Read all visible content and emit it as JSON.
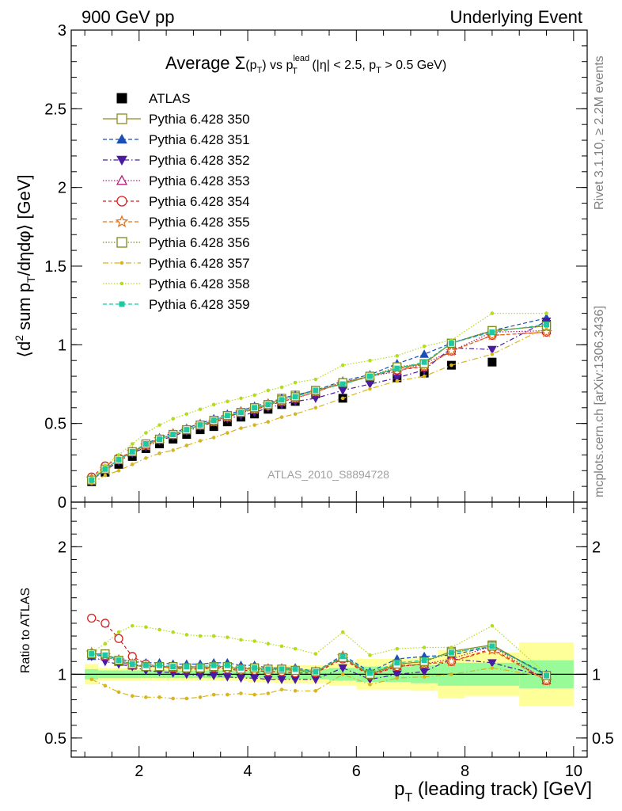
{
  "header": {
    "left": "900 GeV pp",
    "right": "Underlying Event",
    "side_top": "Rivet 3.1.10, ≥ 2.2M events",
    "side_bottom": "mcplots.cern.ch [arXiv:1306.3436]"
  },
  "plot_title": {
    "average": "Average ",
    "sigma": "Σ",
    "pt_open": "(p",
    "t_sub": "T",
    "close_vs": ") vs p",
    "lead_sup": "lead",
    "t_sub2": "T",
    "cut_a": " (|η| < 2.5, p",
    "t_sub3": "T",
    "cut_b": " > 0.5 GeV)"
  },
  "analysis_label": "ATLAS_2010_S8894728",
  "ylabel_main": {
    "a": "⟨d",
    "b": "2",
    "c": " sum p",
    "d": "T",
    "e": "/dηdφ⟩ [GeV]"
  },
  "ylabel_ratio": "Ratio to ATLAS",
  "xlabel": {
    "a": "p",
    "b": "T",
    "c": " (leading track) [GeV]"
  },
  "chart_data": [
    {
      "type": "line",
      "panel": "main",
      "x": [
        1.125,
        1.375,
        1.625,
        1.875,
        2.125,
        2.375,
        2.625,
        2.875,
        3.125,
        3.375,
        3.625,
        3.875,
        4.125,
        4.375,
        4.625,
        4.875,
        5.25,
        5.75,
        6.25,
        6.75,
        7.25,
        7.75,
        8.5,
        9.5
      ],
      "xlim": [
        0.75,
        10.25
      ],
      "ylim": [
        0,
        3
      ],
      "xticks": [
        2,
        4,
        6,
        8,
        10
      ],
      "yticks": [
        0,
        0.5,
        1,
        1.5,
        2,
        2.5,
        3
      ],
      "legend_position": "top-left",
      "series": [
        {
          "name": "ATLAS",
          "color": "#000000",
          "marker": "square-filled",
          "dash": "none",
          "values": [
            0.13,
            0.19,
            0.24,
            0.29,
            0.34,
            0.37,
            0.4,
            0.43,
            0.46,
            0.48,
            0.51,
            0.54,
            0.56,
            0.59,
            0.62,
            0.64,
            0.69,
            0.66,
            0.79,
            0.79,
            0.82,
            0.87,
            0.89,
            1.13
          ]
        },
        {
          "name": "Pythia 6.428 350",
          "color": "#8c8c1e",
          "marker": "square-open",
          "dash": "solid",
          "values": [
            0.14,
            0.21,
            0.27,
            0.32,
            0.36,
            0.4,
            0.43,
            0.46,
            0.49,
            0.52,
            0.55,
            0.57,
            0.6,
            0.62,
            0.66,
            0.68,
            0.71,
            0.75,
            0.8,
            0.85,
            0.88,
            1.01,
            1.09,
            1.12
          ]
        },
        {
          "name": "Pythia 6.428 351",
          "color": "#1a4fb5",
          "marker": "triangle-up-filled",
          "dash": "5,3",
          "values": [
            0.14,
            0.21,
            0.27,
            0.32,
            0.37,
            0.41,
            0.44,
            0.47,
            0.5,
            0.53,
            0.56,
            0.58,
            0.61,
            0.63,
            0.66,
            0.68,
            0.71,
            0.77,
            0.81,
            0.88,
            0.94,
            1.01,
            1.09,
            1.17
          ]
        },
        {
          "name": "Pythia 6.428 352",
          "color": "#4a1aa0",
          "marker": "triangle-down-filled",
          "dash": "6,3,1.5,3",
          "values": [
            0.14,
            0.2,
            0.26,
            0.31,
            0.35,
            0.39,
            0.42,
            0.45,
            0.48,
            0.51,
            0.53,
            0.55,
            0.57,
            0.6,
            0.62,
            0.64,
            0.66,
            0.71,
            0.75,
            0.79,
            0.84,
            0.98,
            0.97,
            1.15
          ]
        },
        {
          "name": "Pythia 6.428 353",
          "color": "#b0207a",
          "marker": "triangle-up-open",
          "dash": "1.5,2",
          "values": [
            0.14,
            0.21,
            0.27,
            0.32,
            0.36,
            0.4,
            0.43,
            0.46,
            0.49,
            0.52,
            0.54,
            0.57,
            0.59,
            0.62,
            0.64,
            0.66,
            0.7,
            0.76,
            0.8,
            0.83,
            0.88,
            0.96,
            1.08,
            1.09
          ]
        },
        {
          "name": "Pythia 6.428 354",
          "color": "#d81e1e",
          "marker": "circle-open",
          "dash": "4,3",
          "values": [
            0.16,
            0.23,
            0.28,
            0.32,
            0.37,
            0.4,
            0.43,
            0.46,
            0.49,
            0.51,
            0.54,
            0.57,
            0.59,
            0.61,
            0.64,
            0.66,
            0.7,
            0.76,
            0.8,
            0.84,
            0.86,
            0.96,
            1.06,
            1.08
          ]
        },
        {
          "name": "Pythia 6.428 355",
          "color": "#e8731e",
          "marker": "star-open",
          "dash": "5,3",
          "values": [
            0.15,
            0.21,
            0.27,
            0.32,
            0.36,
            0.4,
            0.43,
            0.46,
            0.49,
            0.51,
            0.54,
            0.57,
            0.59,
            0.62,
            0.64,
            0.66,
            0.7,
            0.76,
            0.8,
            0.85,
            0.86,
            0.96,
            1.06,
            1.08
          ]
        },
        {
          "name": "Pythia 6.428 356",
          "color": "#7a8c1e",
          "marker": "square-open",
          "dash": "1.5,2",
          "values": [
            0.14,
            0.21,
            0.27,
            0.32,
            0.37,
            0.4,
            0.43,
            0.46,
            0.49,
            0.52,
            0.55,
            0.57,
            0.6,
            0.62,
            0.65,
            0.67,
            0.71,
            0.76,
            0.8,
            0.86,
            0.88,
            1.01,
            1.09,
            1.12
          ]
        },
        {
          "name": "Pythia 6.428 357",
          "color": "#d8b41e",
          "marker": "dot",
          "dash": "7,3,1.5,3",
          "values": [
            0.12,
            0.17,
            0.2,
            0.24,
            0.28,
            0.31,
            0.33,
            0.36,
            0.39,
            0.41,
            0.44,
            0.47,
            0.49,
            0.51,
            0.54,
            0.56,
            0.6,
            0.66,
            0.72,
            0.77,
            0.8,
            0.87,
            0.94,
            1.11
          ]
        },
        {
          "name": "Pythia 6.428 358",
          "color": "#b4dc1e",
          "marker": "dot",
          "dash": "1.5,2",
          "values": [
            0.15,
            0.23,
            0.3,
            0.37,
            0.44,
            0.49,
            0.53,
            0.56,
            0.59,
            0.62,
            0.64,
            0.66,
            0.68,
            0.71,
            0.73,
            0.76,
            0.78,
            0.87,
            0.9,
            0.93,
            0.99,
            1.03,
            1.2,
            1.2
          ]
        },
        {
          "name": "Pythia 6.428 359",
          "color": "#1ec8a0",
          "marker": "square-small",
          "dash": "5,3",
          "values": [
            0.14,
            0.21,
            0.27,
            0.32,
            0.37,
            0.4,
            0.43,
            0.46,
            0.49,
            0.52,
            0.55,
            0.57,
            0.6,
            0.62,
            0.65,
            0.67,
            0.71,
            0.75,
            0.8,
            0.85,
            0.89,
            1.01,
            1.08,
            1.13
          ]
        }
      ]
    },
    {
      "type": "line",
      "panel": "ratio",
      "x": [
        1.125,
        1.375,
        1.625,
        1.875,
        2.125,
        2.375,
        2.625,
        2.875,
        3.125,
        3.375,
        3.625,
        3.875,
        4.125,
        4.375,
        4.625,
        4.875,
        5.25,
        5.75,
        6.25,
        6.75,
        7.25,
        7.75,
        8.5,
        9.5
      ],
      "xlim": [
        0.75,
        10.25
      ],
      "ylim": [
        0.35,
        2.35
      ],
      "yticks": [
        0.5,
        1,
        2
      ],
      "bands": {
        "edges": [
          1.0,
          1.25,
          1.5,
          1.75,
          2.0,
          2.25,
          2.5,
          2.75,
          3.0,
          3.25,
          3.5,
          3.75,
          4.0,
          4.25,
          4.5,
          4.75,
          5.0,
          5.5,
          6.0,
          6.5,
          7.0,
          7.5,
          8.0,
          9.0,
          10.0
        ],
        "stat_syst_outer": [
          0.08,
          0.05,
          0.05,
          0.05,
          0.05,
          0.05,
          0.05,
          0.05,
          0.05,
          0.05,
          0.05,
          0.05,
          0.06,
          0.06,
          0.07,
          0.07,
          0.07,
          0.09,
          0.12,
          0.12,
          0.13,
          0.19,
          0.17,
          0.25
        ],
        "stat_inner": [
          0.04,
          0.03,
          0.03,
          0.03,
          0.03,
          0.03,
          0.03,
          0.03,
          0.03,
          0.03,
          0.03,
          0.03,
          0.03,
          0.03,
          0.04,
          0.04,
          0.04,
          0.05,
          0.06,
          0.06,
          0.07,
          0.09,
          0.09,
          0.11
        ],
        "outer_color": "#ffff99",
        "inner_color": "#98fb98"
      },
      "series": [
        {
          "name": "Pythia 6.428 350",
          "values": [
            1.16,
            1.16,
            1.1,
            1.07,
            1.06,
            1.06,
            1.06,
            1.05,
            1.05,
            1.06,
            1.06,
            1.04,
            1.05,
            1.04,
            1.04,
            1.03,
            1.02,
            1.13,
            1.0,
            1.08,
            1.1,
            1.18,
            1.23,
            0.99
          ]
        },
        {
          "name": "Pythia 6.428 351",
          "values": [
            1.14,
            1.15,
            1.12,
            1.1,
            1.09,
            1.09,
            1.08,
            1.08,
            1.08,
            1.09,
            1.09,
            1.07,
            1.07,
            1.05,
            1.05,
            1.05,
            1.02,
            1.15,
            1.02,
            1.12,
            1.14,
            1.15,
            1.22,
            1.0
          ]
        },
        {
          "name": "Pythia 6.428 352",
          "values": [
            1.14,
            1.1,
            1.08,
            1.06,
            1.03,
            1.02,
            1.01,
            1.0,
            0.99,
            0.99,
            0.98,
            0.97,
            0.97,
            0.96,
            0.96,
            0.96,
            0.96,
            1.05,
            0.96,
            1.0,
            1.02,
            1.12,
            1.09,
            0.98
          ]
        },
        {
          "name": "Pythia 6.428 353",
          "values": [
            1.16,
            1.14,
            1.1,
            1.07,
            1.06,
            1.06,
            1.05,
            1.05,
            1.05,
            1.06,
            1.05,
            1.04,
            1.04,
            1.03,
            1.04,
            1.03,
            1.02,
            1.13,
            1.0,
            1.06,
            1.08,
            1.12,
            1.22,
            0.95
          ]
        },
        {
          "name": "Pythia 6.428 354",
          "values": [
            1.44,
            1.4,
            1.28,
            1.14,
            1.08,
            1.06,
            1.05,
            1.04,
            1.04,
            1.05,
            1.04,
            1.03,
            1.03,
            1.02,
            1.02,
            1.01,
            1.01,
            1.12,
            0.99,
            1.06,
            1.08,
            1.1,
            1.2,
            0.95
          ]
        },
        {
          "name": "Pythia 6.428 355",
          "values": [
            1.17,
            1.15,
            1.11,
            1.08,
            1.06,
            1.06,
            1.05,
            1.05,
            1.05,
            1.06,
            1.05,
            1.04,
            1.04,
            1.04,
            1.04,
            1.03,
            1.02,
            1.14,
            1.0,
            1.07,
            1.08,
            1.1,
            1.19,
            0.95
          ]
        },
        {
          "name": "Pythia 6.428 356",
          "values": [
            1.16,
            1.16,
            1.11,
            1.08,
            1.06,
            1.06,
            1.06,
            1.05,
            1.05,
            1.06,
            1.06,
            1.04,
            1.05,
            1.04,
            1.04,
            1.03,
            1.02,
            1.13,
            1.0,
            1.08,
            1.1,
            1.17,
            1.22,
            0.99
          ]
        },
        {
          "name": "Pythia 6.428 357",
          "values": [
            0.96,
            0.91,
            0.86,
            0.83,
            0.82,
            0.82,
            0.81,
            0.81,
            0.82,
            0.84,
            0.84,
            0.85,
            0.84,
            0.85,
            0.88,
            0.87,
            0.87,
            1.0,
            0.92,
            0.97,
            0.98,
            1.0,
            1.05,
            0.98
          ]
        },
        {
          "name": "Pythia 6.428 358",
          "values": [
            1.17,
            1.24,
            1.33,
            1.38,
            1.37,
            1.35,
            1.33,
            1.31,
            1.3,
            1.3,
            1.29,
            1.27,
            1.26,
            1.24,
            1.22,
            1.2,
            1.16,
            1.33,
            1.15,
            1.2,
            1.21,
            1.21,
            1.38,
            1.0
          ]
        },
        {
          "name": "Pythia 6.428 359",
          "values": [
            1.16,
            1.15,
            1.11,
            1.08,
            1.07,
            1.07,
            1.06,
            1.06,
            1.06,
            1.07,
            1.07,
            1.05,
            1.05,
            1.04,
            1.04,
            1.04,
            1.02,
            1.14,
            1.01,
            1.09,
            1.11,
            1.17,
            1.22,
            0.99
          ]
        }
      ]
    }
  ]
}
